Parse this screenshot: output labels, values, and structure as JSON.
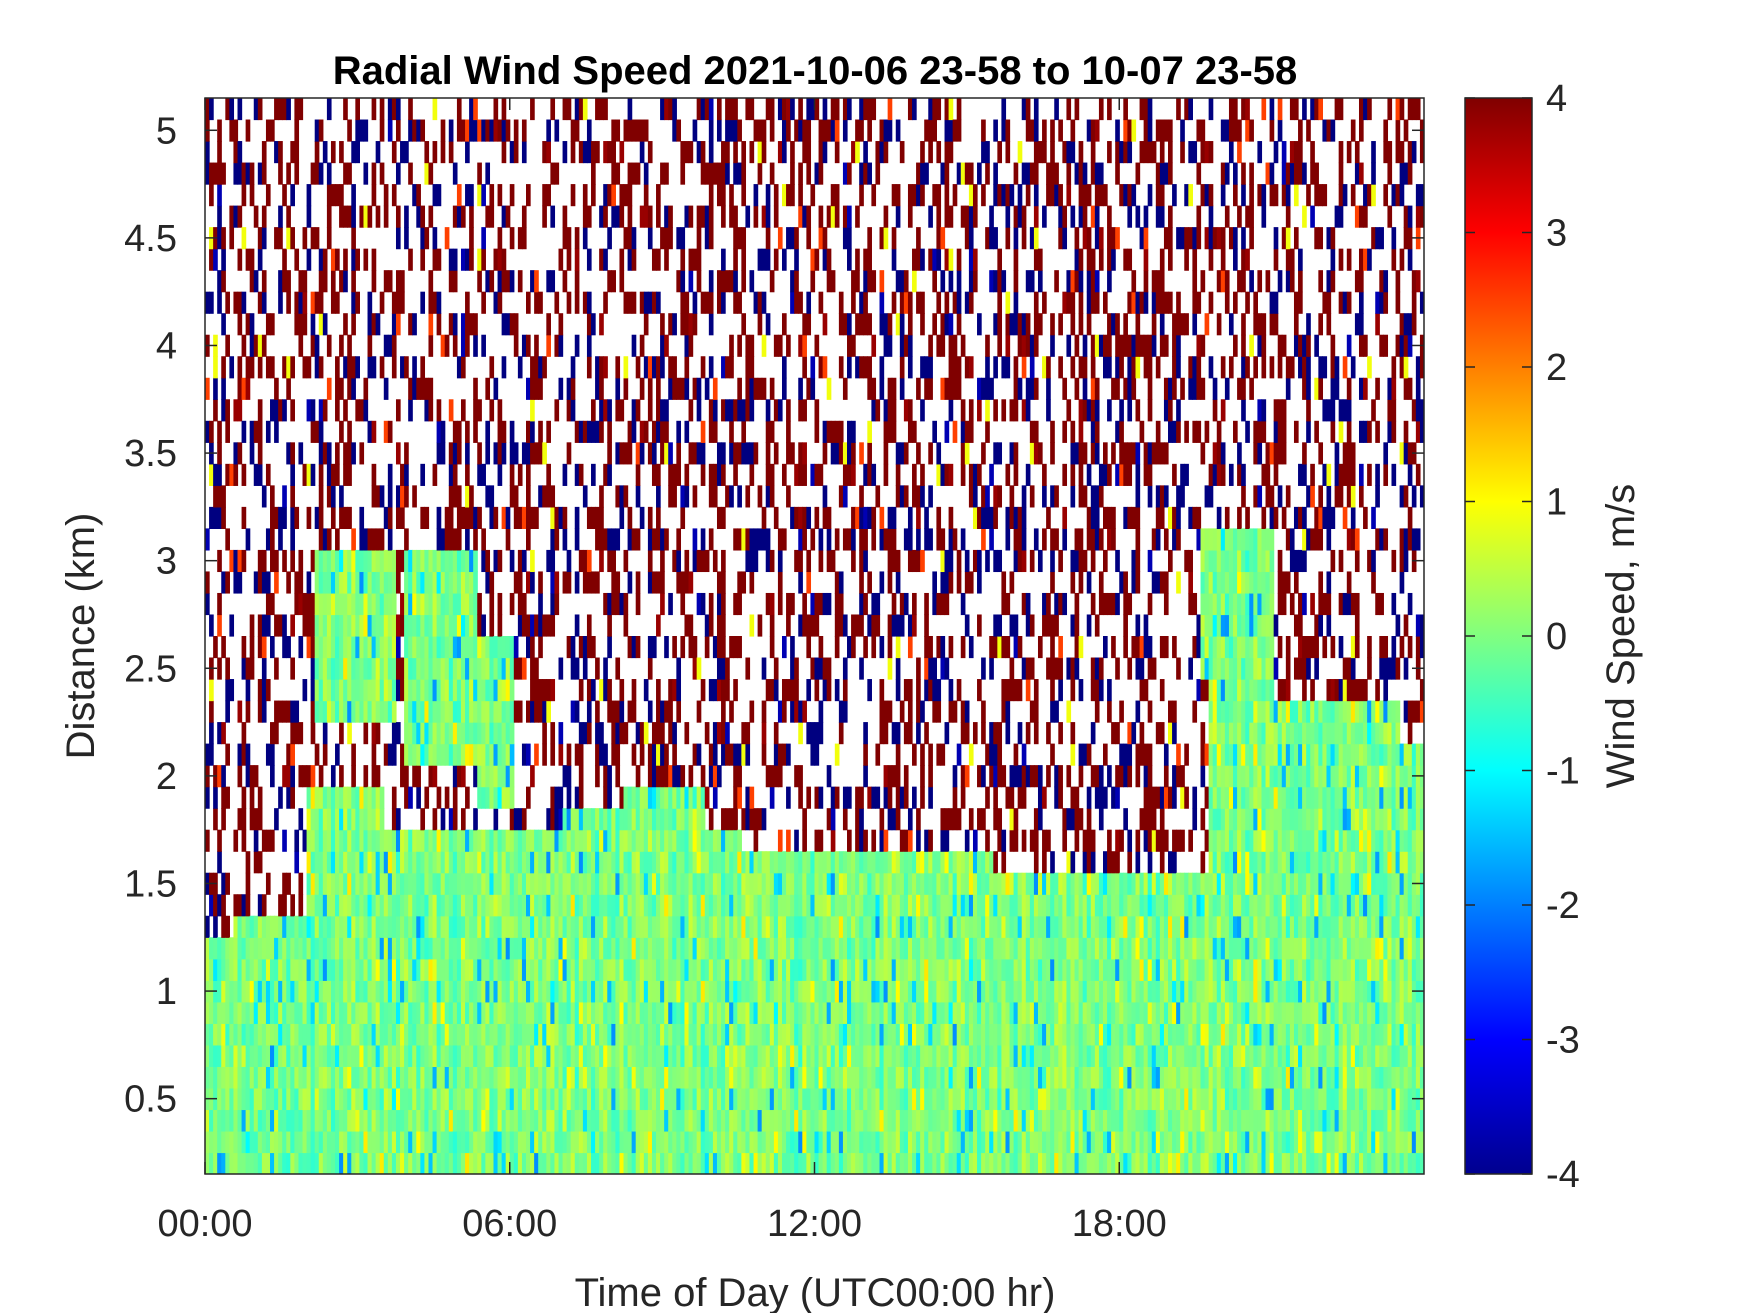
{
  "chart_data": {
    "type": "heatmap",
    "title": "Radial Wind Speed 2021-10-06 23-58 to 10-07 23-58",
    "xlabel": "Time of Day (UTC00:00 hr)",
    "ylabel": "Distance (km)",
    "colorbar_label": "Wind Speed, m/s",
    "xlim": [
      0,
      24
    ],
    "ylim": [
      0.15,
      5.15
    ],
    "clim": [
      -4,
      4
    ],
    "colormap": "jet",
    "x_ticks": [
      {
        "value": 0,
        "label": "00:00"
      },
      {
        "value": 6,
        "label": "06:00"
      },
      {
        "value": 12,
        "label": "12:00"
      },
      {
        "value": 18,
        "label": "18:00"
      }
    ],
    "y_ticks": [
      {
        "value": 0.5,
        "label": "0.5"
      },
      {
        "value": 1,
        "label": "1"
      },
      {
        "value": 1.5,
        "label": "1.5"
      },
      {
        "value": 2,
        "label": "2"
      },
      {
        "value": 2.5,
        "label": "2.5"
      },
      {
        "value": 3,
        "label": "3"
      },
      {
        "value": 3.5,
        "label": "3.5"
      },
      {
        "value": 4,
        "label": "4"
      },
      {
        "value": 4.5,
        "label": "4.5"
      },
      {
        "value": 5,
        "label": "5"
      }
    ],
    "colorbar_ticks": [
      {
        "value": 4,
        "label": "4"
      },
      {
        "value": 3,
        "label": "3"
      },
      {
        "value": 2,
        "label": "2"
      },
      {
        "value": 1,
        "label": "1"
      },
      {
        "value": 0,
        "label": "0"
      },
      {
        "value": -1,
        "label": "-1"
      },
      {
        "value": -2,
        "label": "-2"
      },
      {
        "value": -3,
        "label": "-3"
      },
      {
        "value": -4,
        "label": "-4"
      }
    ],
    "valid_data_top_km": [
      {
        "x": 0,
        "distance": 1.25
      },
      {
        "x": 0.5,
        "distance": 1.35
      },
      {
        "x": 2,
        "distance": 1.95
      },
      {
        "x": 3.5,
        "distance": 1.75
      },
      {
        "x": 5.5,
        "distance": 1.75
      },
      {
        "x": 7,
        "distance": 1.85
      },
      {
        "x": 8.2,
        "distance": 1.95
      },
      {
        "x": 9.8,
        "distance": 1.75
      },
      {
        "x": 10.5,
        "distance": 1.65
      },
      {
        "x": 13.5,
        "distance": 1.65
      },
      {
        "x": 15.5,
        "distance": 1.55
      },
      {
        "x": 17.8,
        "distance": 1.55
      },
      {
        "x": 19.7,
        "distance": 2.45
      },
      {
        "x": 21,
        "distance": 2.35
      },
      {
        "x": 23.5,
        "distance": 2.15
      }
    ],
    "secondary_valid_regions": [
      {
        "x": [
          2.1,
          3.7
        ],
        "distance": [
          2.25,
          3.05
        ]
      },
      {
        "x": [
          3.9,
          5.3
        ],
        "distance": [
          2.05,
          3.05
        ]
      },
      {
        "x": [
          5.3,
          6.0
        ],
        "distance": [
          1.85,
          2.65
        ]
      },
      {
        "x": [
          19.6,
          21.0
        ],
        "distance": [
          2.45,
          3.2
        ]
      }
    ],
    "typical_valid_speed": [
      -0.5,
      0.5
    ],
    "noise_speed_extremes": [
      -4,
      4
    ]
  }
}
